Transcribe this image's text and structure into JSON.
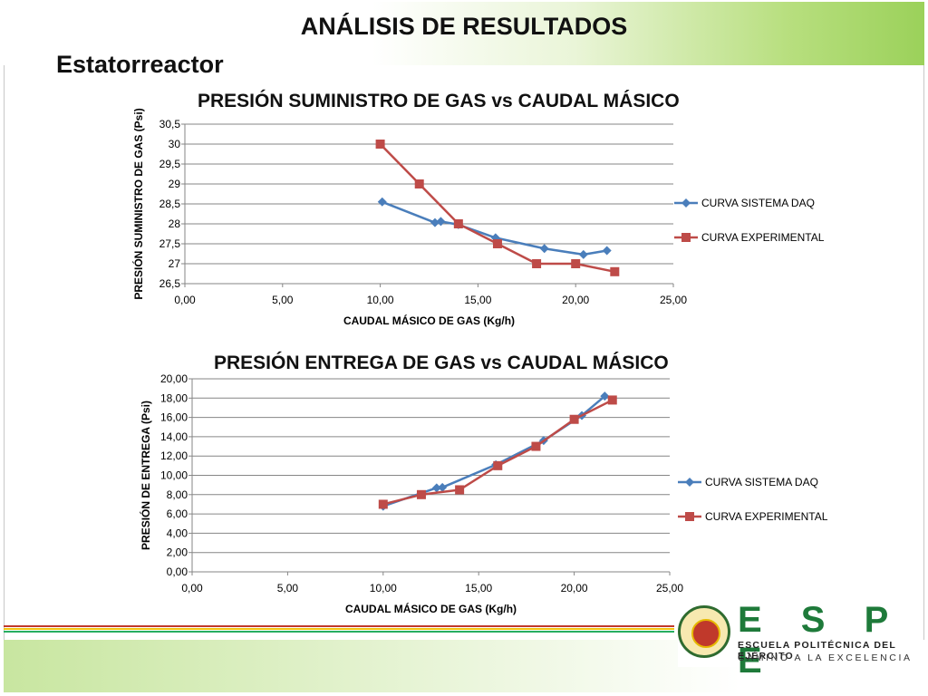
{
  "slide": {
    "title": "ANÁLISIS DE RESULTADOS",
    "subtitle": "Estatorreactor"
  },
  "colors": {
    "daq": "#4a7ebb",
    "experimental": "#be4b48",
    "grid": "#868686",
    "header_green": "#9bd15a",
    "logo_green": "#1e7a3a"
  },
  "logo": {
    "letters": "E S P E",
    "line1": "ESCUELA POLITÉCNICA DEL EJÉRCITO",
    "line2": "CAMINO A LA EXCELENCIA"
  },
  "chart_data": [
    {
      "type": "line",
      "title": "PRESIÓN SUMINISTRO DE GAS vs CAUDAL MÁSICO",
      "xlabel": "CAUDAL MÁSICO DE GAS (Kg/h)",
      "ylabel": "PRESIÓN SUMINISTRO DE GAS (Psi)",
      "xlim": [
        0,
        25
      ],
      "ylim": [
        26.5,
        30.5
      ],
      "x_ticks": [
        "0,00",
        "5,00",
        "10,00",
        "15,00",
        "20,00",
        "25,00"
      ],
      "y_ticks": [
        "26,5",
        "27",
        "27,5",
        "28",
        "28,5",
        "29",
        "29,5",
        "30",
        "30,5"
      ],
      "grid": true,
      "legend_position": "right",
      "series": [
        {
          "name": "CURVA SISTEMA DAQ",
          "marker": "diamond",
          "x": [
            10.1,
            12.8,
            13.1,
            14.0,
            15.9,
            18.4,
            20.4,
            21.6
          ],
          "y": [
            28.55,
            28.03,
            28.06,
            27.98,
            27.65,
            27.38,
            27.23,
            27.33
          ]
        },
        {
          "name": "CURVA EXPERIMENTAL",
          "marker": "square",
          "x": [
            10,
            12,
            14,
            16,
            18,
            20,
            22
          ],
          "y": [
            30,
            29,
            28,
            27.5,
            27,
            27,
            26.8
          ]
        }
      ]
    },
    {
      "type": "line",
      "title": "PRESIÓN ENTREGA DE GAS vs CAUDAL MÁSICO",
      "xlabel": "CAUDAL MÁSICO DE GAS (Kg/h)",
      "ylabel": "PRESIÓN DE ENTREGA (Psi)",
      "xlim": [
        0,
        25
      ],
      "ylim": [
        0,
        20
      ],
      "x_ticks": [
        "0,00",
        "5,00",
        "10,00",
        "15,00",
        "20,00",
        "25,00"
      ],
      "y_ticks": [
        "0,00",
        "2,00",
        "4,00",
        "6,00",
        "8,00",
        "10,00",
        "12,00",
        "14,00",
        "16,00",
        "18,00",
        "20,00"
      ],
      "grid": true,
      "legend_position": "right",
      "series": [
        {
          "name": "CURVA SISTEMA DAQ",
          "marker": "diamond",
          "x": [
            10.0,
            12.8,
            13.1,
            15.9,
            18.4,
            20.4,
            21.6
          ],
          "y": [
            6.8,
            8.7,
            8.75,
            11.1,
            13.6,
            16.2,
            18.2
          ]
        },
        {
          "name": "CURVA EXPERIMENTAL",
          "marker": "square",
          "x": [
            10,
            12,
            14,
            16,
            18,
            20,
            22
          ],
          "y": [
            7,
            8,
            8.5,
            11,
            13,
            15.8,
            17.8
          ]
        }
      ]
    }
  ]
}
